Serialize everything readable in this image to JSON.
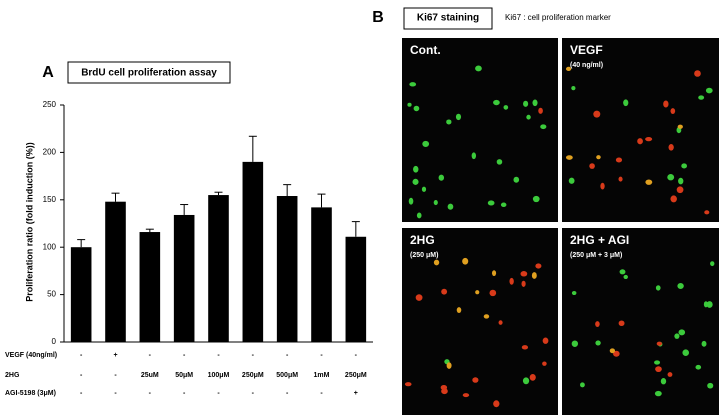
{
  "chart_data": {
    "type": "bar",
    "panel_label": "A",
    "title": "BrdU cell proliferation assay",
    "y_label": "Proliferation ratio (fold induction (%))",
    "values": [
      100,
      148,
      116,
      134,
      155,
      190,
      154,
      142,
      111
    ],
    "errors": [
      8,
      9,
      3,
      11,
      3,
      27,
      12,
      14,
      16
    ],
    "color": "#000000",
    "ylim": [
      0,
      250
    ],
    "yticks": [
      0,
      50,
      100,
      150,
      200,
      250
    ],
    "treatments": [
      {
        "label": "VEGF (40ng/ml)",
        "values": [
          "-",
          "+",
          "-",
          "-",
          "-",
          "-",
          "-",
          "-",
          "-"
        ]
      },
      {
        "label": "2HG",
        "values": [
          "-",
          "-",
          "25uM",
          "50μM",
          "100μM",
          "250μM",
          "500μM",
          "1mM",
          "250μM"
        ]
      },
      {
        "label": "AGI-5198 (3μM)",
        "values": [
          "-",
          "-",
          "-",
          "-",
          "-",
          "-",
          "-",
          "-",
          "+"
        ]
      }
    ]
  },
  "figure_b": {
    "panel_label": "B",
    "title": "Ki67 staining",
    "note": "Ki67 : cell proliferation marker",
    "panels": [
      {
        "label": "Cont."
      },
      {
        "label": "VEGF",
        "sublabel": "(40 ng/ml)"
      },
      {
        "label": "2HG",
        "sublabel": "(250 μM)"
      },
      {
        "label": "2HG + AGI",
        "sublabel": "(250 μM + 3 μM)"
      }
    ]
  }
}
